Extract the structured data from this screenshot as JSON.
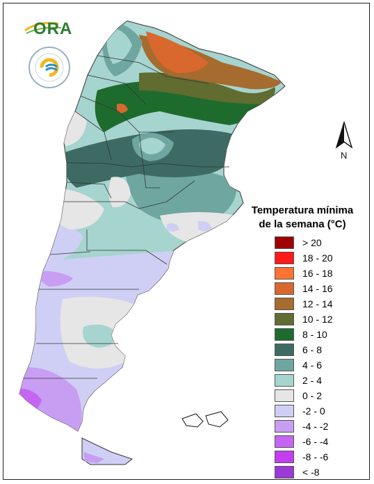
{
  "legend": {
    "title_line1": "Temperatura mínima",
    "title_line2": "de la semana (°C)",
    "items": [
      {
        "label": "> 20",
        "color": "#a00000"
      },
      {
        "label": "18 - 20",
        "color": "#ff1a1a"
      },
      {
        "label": "16 - 18",
        "color": "#ff7333"
      },
      {
        "label": "14 - 16",
        "color": "#d9682e"
      },
      {
        "label": "12 - 14",
        "color": "#a66b2e"
      },
      {
        "label": "10 - 12",
        "color": "#606c30"
      },
      {
        "label": "8 - 10",
        "color": "#1e6b2e"
      },
      {
        "label": "6 - 8",
        "color": "#3d6b63"
      },
      {
        "label": "4 - 6",
        "color": "#6fa6a0"
      },
      {
        "label": "2 - 4",
        "color": "#a6d4cf"
      },
      {
        "label": "0 - 2",
        "color": "#e6e6e6"
      },
      {
        "label": "-2 - 0",
        "color": "#cfcff5"
      },
      {
        "label": "-4 - -2",
        "color": "#c79ef2"
      },
      {
        "label": "-6 - -4",
        "color": "#c466f2"
      },
      {
        "label": "-8 - -6",
        "color": "#c43ef0"
      },
      {
        "label": "< -8",
        "color": "#9b3ad6"
      }
    ]
  },
  "logos": {
    "ora": "ORA",
    "seal_icon": "smn-seal-icon"
  },
  "north_arrow": {
    "label": "N"
  }
}
